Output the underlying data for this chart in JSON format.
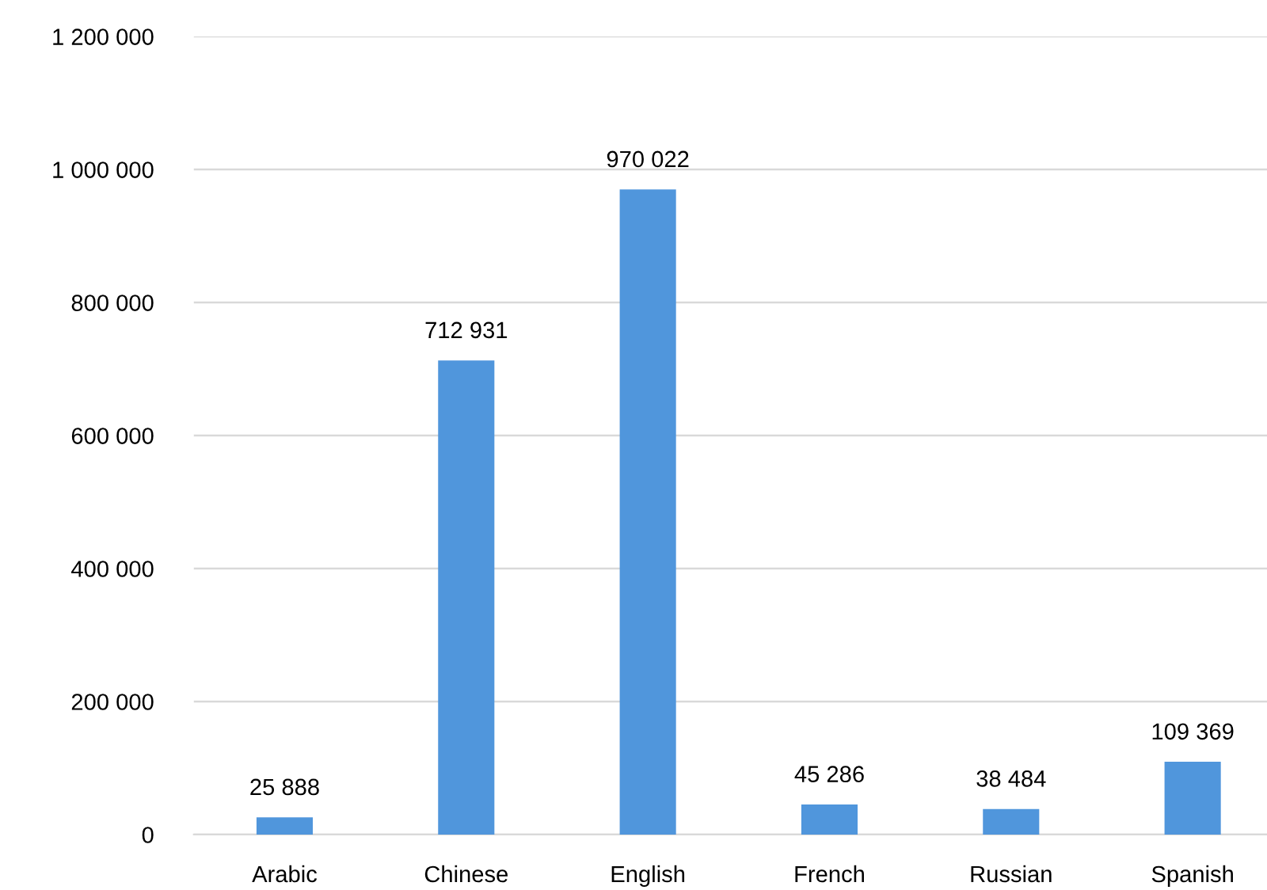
{
  "chart_data": {
    "type": "bar",
    "categories": [
      "Arabic",
      "Chinese",
      "English",
      "French",
      "Russian",
      "Spanish"
    ],
    "values": [
      25888,
      712931,
      970022,
      45286,
      38484,
      109369
    ],
    "value_labels": [
      "25 888",
      "712 931",
      "970 022",
      "45 286",
      "38 484",
      "109 369"
    ],
    "color": "#5096dc",
    "ylim": [
      0,
      1200000
    ],
    "yticks": [
      {
        "value": 0,
        "label": "0"
      },
      {
        "value": 200000,
        "label": "200 000"
      },
      {
        "value": 400000,
        "label": "400 000"
      },
      {
        "value": 600000,
        "label": "600 000"
      },
      {
        "value": 800000,
        "label": "800 000"
      },
      {
        "value": 1000000,
        "label": "1 000 000"
      },
      {
        "value": 1200000,
        "label": "1 200 000"
      }
    ],
    "grid": "y",
    "legend": false
  }
}
